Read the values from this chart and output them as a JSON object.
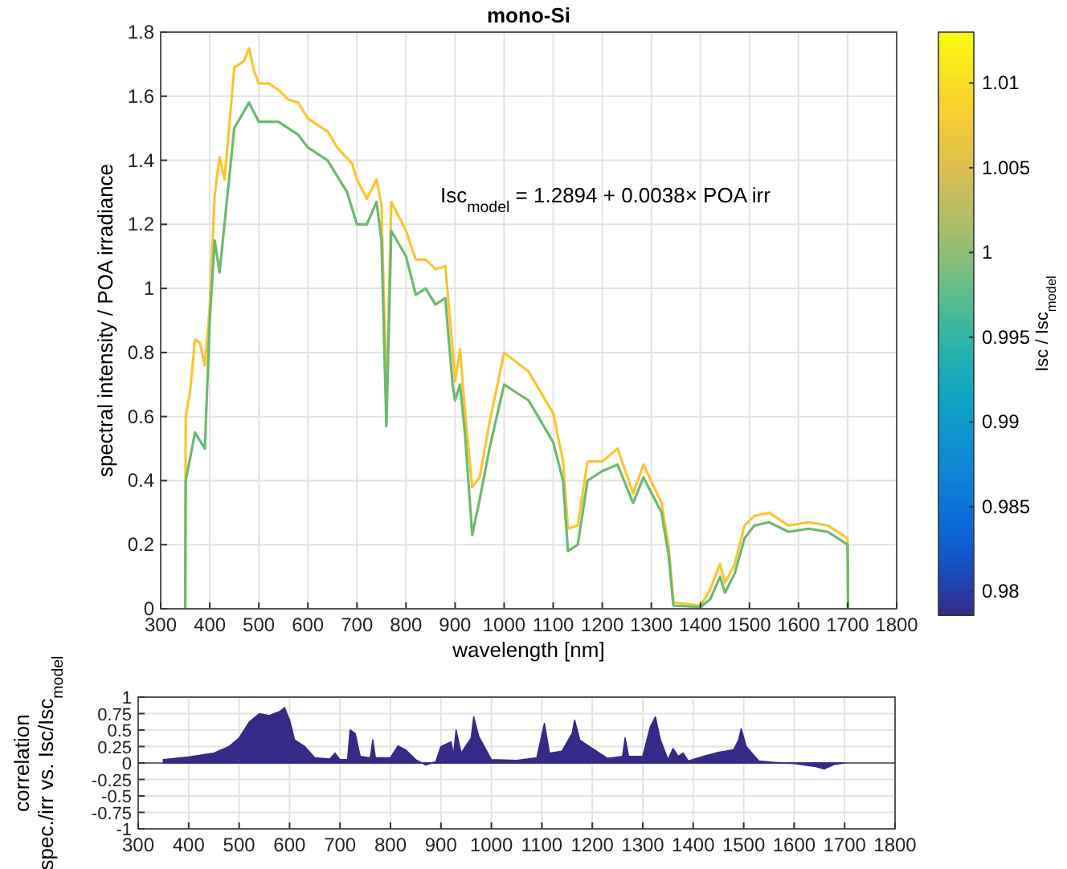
{
  "chart_data": [
    {
      "type": "line",
      "title": "mono-Si",
      "xlabel": "wavelength [nm]",
      "ylabel": "spectral intensity / POA irradiance",
      "clabel": "Isc / Isc$_{model}$",
      "clim": [
        0.9786,
        1.013
      ],
      "cticks": [
        0.98,
        0.985,
        0.99,
        0.995,
        1,
        1.005,
        1.01
      ],
      "annotations": [
        "Isc$_{model}$ = 1.2894 + 0.0038× POA irr"
      ],
      "xlim": [
        300,
        1800
      ],
      "ylim": [
        0,
        1.8
      ],
      "xticks": [
        300,
        400,
        500,
        600,
        700,
        800,
        900,
        1000,
        1100,
        1200,
        1300,
        1400,
        1500,
        1600,
        1700,
        1800
      ],
      "yticks": [
        0,
        0.2,
        0.4,
        0.6,
        0.8,
        1,
        1.2,
        1.4,
        1.6,
        1.8
      ],
      "grid": true,
      "series": [
        {
          "color": "#fbc530",
          "x": [
            350,
            351,
            360,
            370,
            380,
            390,
            400,
            410,
            420,
            430,
            440,
            450,
            470,
            480,
            490,
            500,
            520,
            540,
            560,
            580,
            600,
            620,
            640,
            660,
            690,
            700,
            720,
            740,
            750,
            760,
            770,
            800,
            820,
            840,
            860,
            880,
            895,
            900,
            910,
            920,
            935,
            950,
            970,
            1000,
            1050,
            1100,
            1120,
            1130,
            1150,
            1170,
            1200,
            1231,
            1263,
            1284,
            1321,
            1326,
            1335,
            1345,
            1400,
            1420,
            1440,
            1450,
            1470,
            1490,
            1510,
            1540,
            1580,
            1620,
            1660,
            1700,
            1701
          ],
          "values": [
            0,
            0.6,
            0.68,
            0.84,
            0.83,
            0.76,
            0.94,
            1.29,
            1.41,
            1.34,
            1.51,
            1.69,
            1.71,
            1.75,
            1.68,
            1.64,
            1.64,
            1.62,
            1.59,
            1.58,
            1.53,
            1.51,
            1.49,
            1.44,
            1.39,
            1.34,
            1.28,
            1.34,
            1.26,
            0.65,
            1.27,
            1.18,
            1.09,
            1.09,
            1.06,
            1.07,
            0.81,
            0.71,
            0.81,
            0.62,
            0.38,
            0.41,
            0.58,
            0.8,
            0.74,
            0.61,
            0.46,
            0.25,
            0.26,
            0.46,
            0.46,
            0.5,
            0.36,
            0.45,
            0.33,
            0.28,
            0.2,
            0.02,
            0.01,
            0.06,
            0.14,
            0.08,
            0.14,
            0.26,
            0.29,
            0.3,
            0.26,
            0.27,
            0.26,
            0.22,
            0
          ]
        },
        {
          "color": "#6cba6f",
          "x": [
            350,
            351,
            370,
            390,
            400,
            410,
            420,
            440,
            450,
            480,
            500,
            540,
            580,
            600,
            640,
            680,
            700,
            720,
            740,
            750,
            760,
            770,
            800,
            820,
            840,
            860,
            880,
            895,
            900,
            910,
            920,
            935,
            950,
            970,
            1000,
            1050,
            1100,
            1120,
            1130,
            1150,
            1170,
            1200,
            1231,
            1263,
            1284,
            1321,
            1326,
            1335,
            1345,
            1400,
            1420,
            1440,
            1450,
            1470,
            1490,
            1510,
            1540,
            1580,
            1620,
            1660,
            1700,
            1701
          ],
          "values": [
            0,
            0.4,
            0.55,
            0.5,
            0.9,
            1.15,
            1.05,
            1.35,
            1.5,
            1.58,
            1.52,
            1.52,
            1.48,
            1.44,
            1.4,
            1.3,
            1.2,
            1.2,
            1.27,
            1.15,
            0.57,
            1.18,
            1.1,
            0.98,
            1,
            0.95,
            0.97,
            0.7,
            0.65,
            0.7,
            0.55,
            0.23,
            0.34,
            0.5,
            0.7,
            0.65,
            0.52,
            0.4,
            0.18,
            0.2,
            0.4,
            0.43,
            0.45,
            0.33,
            0.41,
            0.3,
            0.25,
            0.17,
            0.01,
            0.005,
            0.03,
            0.1,
            0.05,
            0.11,
            0.22,
            0.26,
            0.27,
            0.24,
            0.25,
            0.24,
            0.2,
            0
          ]
        }
      ]
    },
    {
      "type": "area",
      "ylabel": "correlation\nspec./irr vs. Isc/Isc$_{model}$",
      "xlim": [
        300,
        1800
      ],
      "ylim": [
        -1,
        1
      ],
      "xticks": [
        300,
        400,
        500,
        600,
        700,
        800,
        900,
        1000,
        1100,
        1200,
        1300,
        1400,
        1500,
        1600,
        1700,
        1800
      ],
      "yticks": [
        -1,
        -0.75,
        -0.5,
        -0.25,
        0,
        0.25,
        0.5,
        0.75,
        1
      ],
      "grid": true,
      "color": "#352a87",
      "x": [
        350,
        400,
        450,
        480,
        500,
        520,
        540,
        560,
        580,
        590,
        600,
        610,
        630,
        650,
        680,
        690,
        700,
        715,
        720,
        730,
        740,
        760,
        765,
        770,
        800,
        815,
        830,
        850,
        870,
        890,
        900,
        920,
        925,
        930,
        940,
        960,
        965,
        975,
        1000,
        1050,
        1090,
        1105,
        1115,
        1140,
        1160,
        1165,
        1175,
        1200,
        1230,
        1260,
        1265,
        1272,
        1300,
        1315,
        1325,
        1335,
        1350,
        1360,
        1370,
        1380,
        1390,
        1420,
        1450,
        1480,
        1490,
        1495,
        1505,
        1530,
        1560,
        1600,
        1620,
        1640,
        1660,
        1680,
        1700
      ],
      "values": [
        0.05,
        0.09,
        0.15,
        0.25,
        0.38,
        0.62,
        0.75,
        0.72,
        0.78,
        0.84,
        0.65,
        0.35,
        0.25,
        0.08,
        0.06,
        0.15,
        0.05,
        0.05,
        0.5,
        0.45,
        0.1,
        0.08,
        0.35,
        0.08,
        0.08,
        0.26,
        0.2,
        0.05,
        -0.03,
        0.02,
        0.25,
        0.32,
        0.12,
        0.5,
        0.15,
        0.38,
        0.7,
        0.4,
        0.05,
        0.04,
        0.08,
        0.6,
        0.15,
        0.18,
        0.45,
        0.65,
        0.35,
        0.22,
        0.07,
        0.1,
        0.38,
        0.1,
        0.1,
        0.55,
        0.7,
        0.35,
        0.05,
        0.22,
        0.1,
        0.15,
        0.03,
        0.1,
        0.16,
        0.2,
        0.35,
        0.52,
        0.25,
        0.03,
        0.01,
        -0.01,
        -0.03,
        -0.05,
        -0.09,
        -0.02,
        0
      ]
    }
  ]
}
